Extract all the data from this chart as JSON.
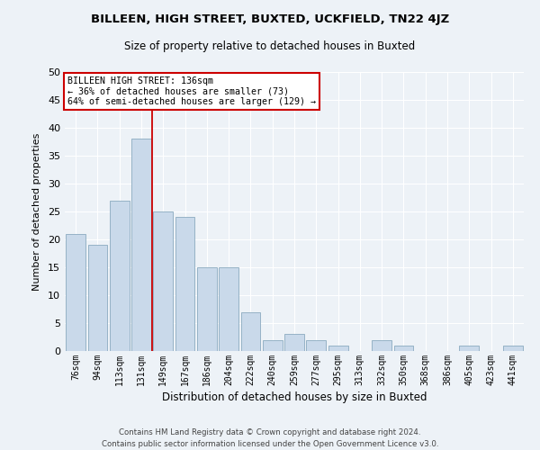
{
  "title_line1": "BILLEEN, HIGH STREET, BUXTED, UCKFIELD, TN22 4JZ",
  "title_line2": "Size of property relative to detached houses in Buxted",
  "xlabel": "Distribution of detached houses by size in Buxted",
  "ylabel": "Number of detached properties",
  "categories": [
    "76sqm",
    "94sqm",
    "113sqm",
    "131sqm",
    "149sqm",
    "167sqm",
    "186sqm",
    "204sqm",
    "222sqm",
    "240sqm",
    "259sqm",
    "277sqm",
    "295sqm",
    "313sqm",
    "332sqm",
    "350sqm",
    "368sqm",
    "386sqm",
    "405sqm",
    "423sqm",
    "441sqm"
  ],
  "values": [
    21,
    19,
    27,
    38,
    25,
    24,
    15,
    15,
    7,
    2,
    3,
    2,
    1,
    0,
    2,
    1,
    0,
    0,
    1,
    0,
    1
  ],
  "bar_color": "#c9d9ea",
  "bar_edge_color": "#8aaabf",
  "vline_x": 3.5,
  "vline_color": "#cc0000",
  "annotation_title": "BILLEEN HIGH STREET: 136sqm",
  "annotation_line1": "← 36% of detached houses are smaller (73)",
  "annotation_line2": "64% of semi-detached houses are larger (129) →",
  "annotation_box_color": "#ffffff",
  "annotation_box_edge": "#cc0000",
  "ylim": [
    0,
    50
  ],
  "yticks": [
    0,
    5,
    10,
    15,
    20,
    25,
    30,
    35,
    40,
    45,
    50
  ],
  "footer_line1": "Contains HM Land Registry data © Crown copyright and database right 2024.",
  "footer_line2": "Contains public sector information licensed under the Open Government Licence v3.0.",
  "bg_color": "#edf2f7",
  "grid_color": "#ffffff"
}
